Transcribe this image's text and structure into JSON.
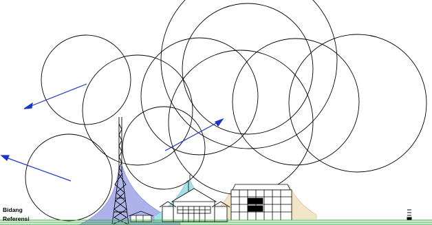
{
  "reference_plane": {
    "line1": "Bidang",
    "line2": "Referensi"
  },
  "colors": {
    "background": "#ffffff",
    "circle_stroke": "#000000",
    "arrow": "#1a35c8",
    "zone_tower": "#aeb2ea",
    "zone_center": "#a7dfe6",
    "zone_right": "#f2e4c6",
    "ground": "#2aa832"
  },
  "icons": [
    "lightning-protection-tower-icon",
    "mosque-building-icon",
    "multi-storey-building-icon",
    "small-house-icon",
    "ground-marker-icon"
  ]
}
